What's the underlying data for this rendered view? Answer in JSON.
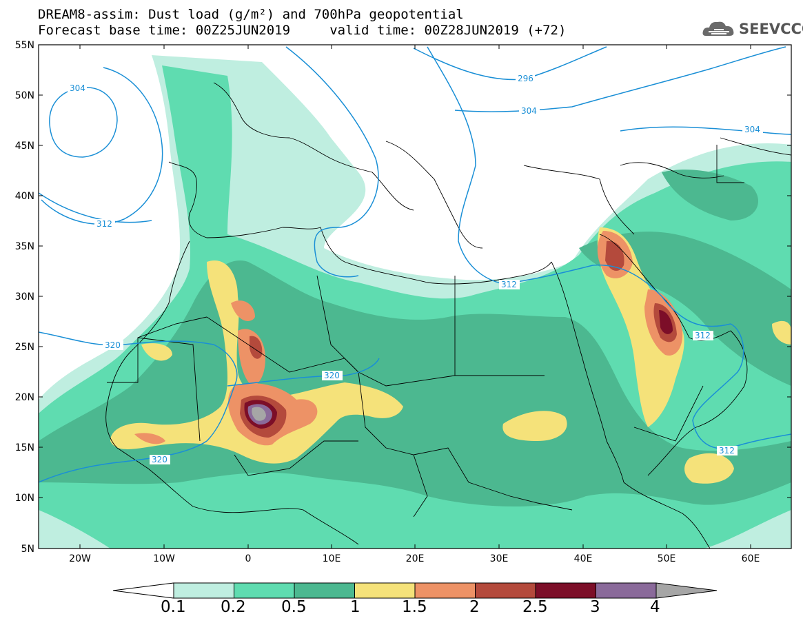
{
  "title": {
    "line1": "DREAM8-assim: Dust load (g/m²) and 700hPa geopotential",
    "line2": "Forecast base time: 00Z25JUN2019     valid time: 00Z28JUN2019 (+72)"
  },
  "logo": {
    "text": "SEEVCCC",
    "icon": "cloud-logo-icon"
  },
  "axes": {
    "lat_labels": [
      "55N",
      "50N",
      "45N",
      "40N",
      "35N",
      "30N",
      "25N",
      "20N",
      "15N",
      "10N",
      "5N"
    ],
    "lon_labels": [
      "20W",
      "10W",
      "0",
      "10E",
      "20E",
      "30E",
      "40E",
      "50E",
      "60E"
    ]
  },
  "colorbar": {
    "labels": [
      "0.1",
      "0.2",
      "0.5",
      "1",
      "1.5",
      "2",
      "2.5",
      "3",
      "4"
    ],
    "colors": [
      "#bfeee0",
      "#5fdcb0",
      "#4cb890",
      "#f5e27a",
      "#ed9266",
      "#b44a3c",
      "#7c0e28",
      "#8a6a9a",
      "#a6a6a6"
    ]
  },
  "contours": [
    "304",
    "296",
    "304",
    "304",
    "312",
    "312",
    "312",
    "320",
    "320",
    "320",
    "312"
  ]
}
